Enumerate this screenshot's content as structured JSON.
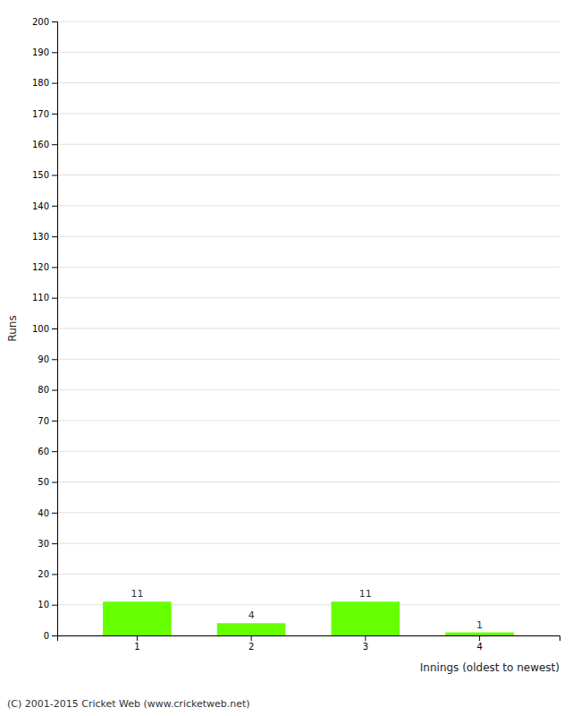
{
  "chart_data": {
    "type": "bar",
    "categories": [
      1,
      2,
      3,
      4
    ],
    "values": [
      11,
      4,
      11,
      1
    ],
    "color": "#66ff00",
    "y_label": "Runs",
    "x_label": "Innings (oldest to newest)",
    "annotations": [
      "(C) 2001-2015 Cricket Web (www.cricketweb.net)"
    ],
    "ylim": [
      0,
      200
    ],
    "yticks": [
      0,
      10,
      20,
      30,
      40,
      50,
      60,
      70,
      80,
      90,
      100,
      110,
      120,
      130,
      140,
      150,
      160,
      170,
      180,
      190,
      200
    ],
    "grid": true,
    "data_labels": true
  }
}
